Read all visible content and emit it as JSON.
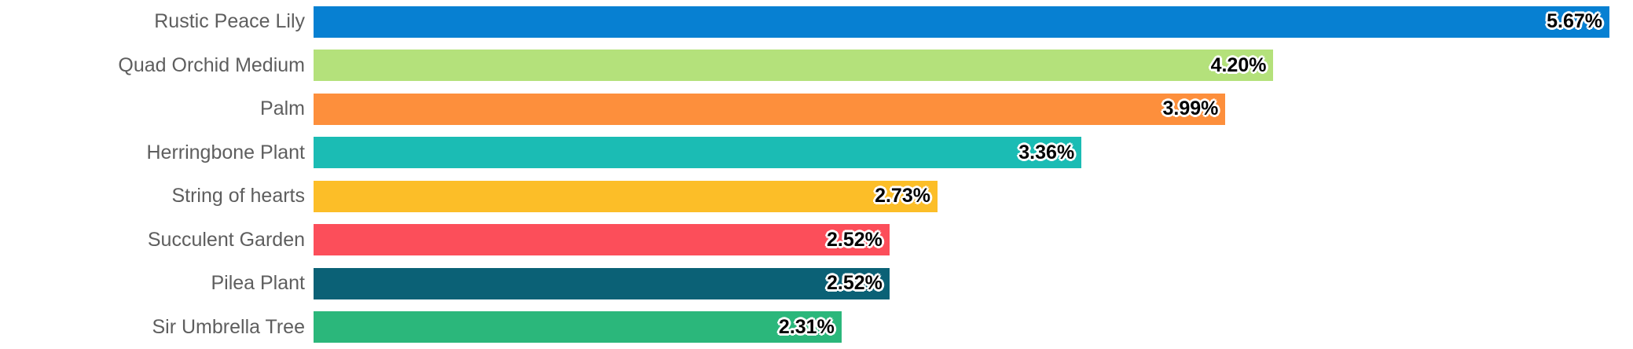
{
  "chart_data": {
    "type": "bar",
    "orientation": "horizontal",
    "title": "",
    "xlabel": "",
    "ylabel": "",
    "grid": false,
    "legend": false,
    "xlim": [
      0,
      5.67
    ],
    "categories": [
      "Rustic Peace Lily",
      "Quad Orchid Medium",
      "Palm",
      "Herringbone Plant",
      "String of hearts",
      "Succulent Garden",
      "Pilea Plant",
      "Sir Umbrella Tree"
    ],
    "values": [
      5.67,
      4.2,
      3.99,
      3.36,
      2.73,
      2.52,
      2.52,
      2.31
    ],
    "value_labels": [
      "5.67%",
      "4.20%",
      "3.99%",
      "3.36%",
      "2.73%",
      "2.52%",
      "2.52%",
      "2.31%"
    ],
    "bar_colors": [
      "#0780d2",
      "#b4e17b",
      "#fd8f3c",
      "#1bbcb4",
      "#fcbe28",
      "#fc4e5a",
      "#0b6176",
      "#2bb77b"
    ],
    "colors": {
      "background": "#ffffff",
      "category_label": "#5e5e5e",
      "value_text": "#000000",
      "value_halo": "#ffffff"
    }
  }
}
